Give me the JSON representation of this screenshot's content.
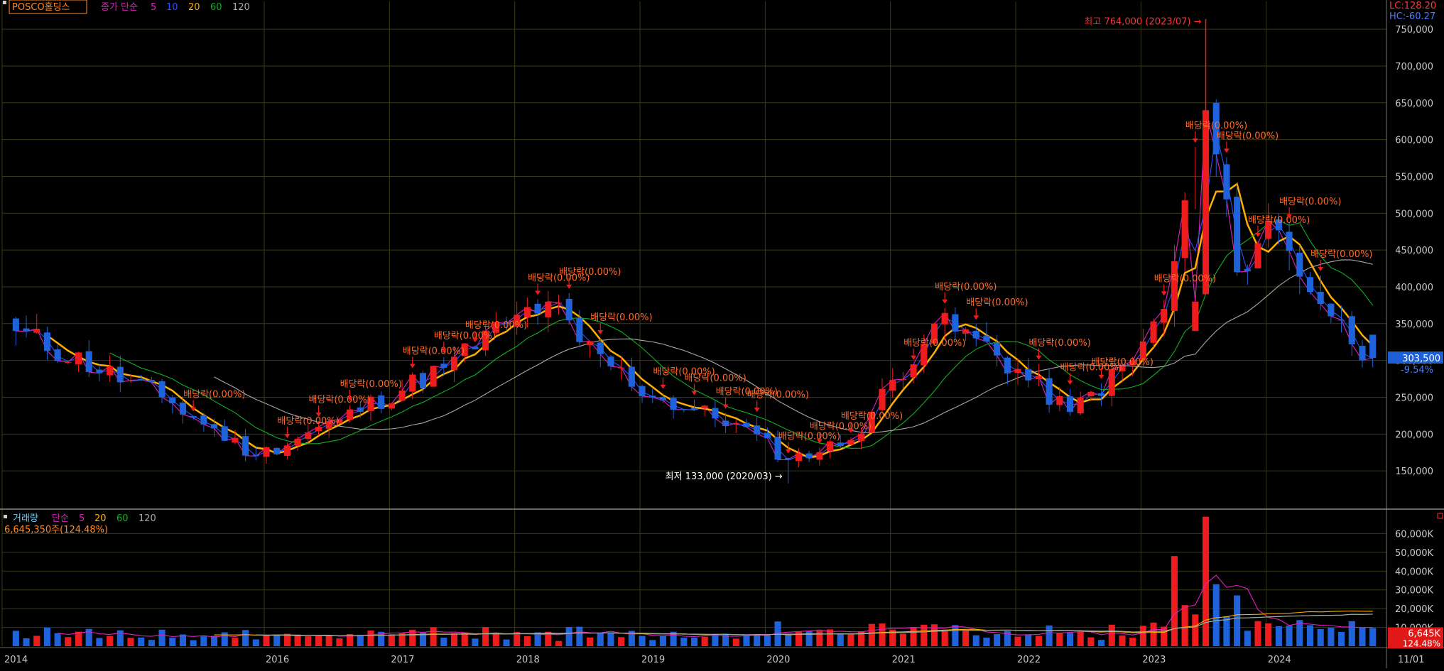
{
  "price_panel": {
    "stock_name": "POSCO홀딩스",
    "ma_label": "종가 단순",
    "ma_periods": [
      "5",
      "10",
      "20",
      "60",
      "120"
    ],
    "ma_colors": [
      "#e020c0",
      "#3050ff",
      "#ffb000",
      "#10b020",
      "#a8a8a8"
    ],
    "lc_label": "LC:128.20",
    "hc_label": "HC:-60.27",
    "current_price_label": "303,500",
    "current_change_label": "-9.54%",
    "high_annotation": "최고 764,000 (2023/07) →",
    "low_annotation": "최저 133,000 (2020/03) →",
    "dividend_label": "배당락(0.00%)"
  },
  "volume_panel": {
    "title": "거래량",
    "ma_label": "단순",
    "ma_periods": [
      "5",
      "20",
      "60",
      "120"
    ],
    "ma_colors": [
      "#e020c0",
      "#ffb000",
      "#10b020",
      "#a8a8a8"
    ],
    "volume_info": "6,645,350주(124.48%)",
    "current_volume_label": "6,645K",
    "current_ratio_label": "124.48%"
  },
  "x_axis": {
    "labels": [
      "2014",
      "2016",
      "2017",
      "2018",
      "2019",
      "2020",
      "2021",
      "2022",
      "2023",
      "2024",
      "11/01"
    ]
  },
  "colors": {
    "up": "#ee1c1c",
    "down": "#1f63dc",
    "grid": "#3a3a16",
    "axis_text": "#c8c8c8"
  },
  "chart_data": {
    "type": "candlestick",
    "timeframe": "monthly",
    "x_start": "2014-01",
    "x_end": "2024-11",
    "price_axis": {
      "min": 100000,
      "max": 780000,
      "ticks": [
        150000,
        200000,
        250000,
        300000,
        350000,
        400000,
        450000,
        500000,
        550000,
        600000,
        650000,
        700000,
        750000
      ]
    },
    "volume_axis": {
      "min": 0,
      "max": 70000,
      "unit": "K",
      "ticks": [
        10000,
        20000,
        30000,
        40000,
        50000,
        60000
      ]
    },
    "ohlc_anchor_closes": [
      {
        "date": "2014-01",
        "close": 340000
      },
      {
        "date": "2015-03",
        "close": 250000
      },
      {
        "date": "2015-12",
        "close": 170000
      },
      {
        "date": "2016-08",
        "close": 220000
      },
      {
        "date": "2017-06",
        "close": 290000
      },
      {
        "date": "2017-12",
        "close": 350000
      },
      {
        "date": "2018-04",
        "close": 380000
      },
      {
        "date": "2018-07",
        "close": 325000
      },
      {
        "date": "2019-02",
        "close": 250000
      },
      {
        "date": "2019-10",
        "close": 215000
      },
      {
        "date": "2020-03",
        "close": 165000
      },
      {
        "date": "2020-09",
        "close": 192000
      },
      {
        "date": "2021-05",
        "close": 350000
      },
      {
        "date": "2021-09",
        "close": 330000
      },
      {
        "date": "2022-06",
        "close": 230000
      },
      {
        "date": "2022-12",
        "close": 300000
      },
      {
        "date": "2023-03",
        "close": 370000
      },
      {
        "date": "2023-07",
        "close": 640000
      },
      {
        "date": "2023-10",
        "close": 420000
      },
      {
        "date": "2024-01",
        "close": 490000
      },
      {
        "date": "2024-07",
        "close": 360000
      },
      {
        "date": "2024-11",
        "close": 303500
      }
    ],
    "extremes": {
      "high": 764000,
      "high_date": "2023-07",
      "low": 133000,
      "low_date": "2020-03"
    },
    "last": {
      "close": 303500,
      "change_pct": -9.54,
      "volume": 6645350,
      "volume_ratio_pct": 124.48
    },
    "volume_spikes_K": [
      {
        "date": "2023-04",
        "volume": 45000
      },
      {
        "date": "2023-07",
        "volume": 66000
      },
      {
        "date": "2023-08",
        "volume": 30000
      }
    ],
    "dividend_markers": [
      "2015-06",
      "2016-03",
      "2016-06",
      "2016-09",
      "2017-03",
      "2017-06",
      "2017-09",
      "2018-03",
      "2018-06",
      "2018-09",
      "2019-03",
      "2019-06",
      "2019-09",
      "2019-12",
      "2020-03",
      "2020-06",
      "2020-09",
      "2021-03",
      "2021-06",
      "2021-09",
      "2022-03",
      "2022-06",
      "2022-09",
      "2023-03",
      "2023-06",
      "2023-09",
      "2023-12",
      "2024-03",
      "2024-06"
    ]
  }
}
